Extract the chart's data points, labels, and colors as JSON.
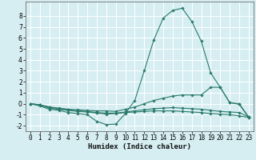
{
  "xlabel": "Humidex (Indice chaleur)",
  "background_color": "#d6eef2",
  "grid_color": "#c8e4e8",
  "line_color": "#2a7a6a",
  "xlim": [
    -0.5,
    23.5
  ],
  "ylim": [
    -2.5,
    9.3
  ],
  "yticks": [
    -2,
    -1,
    0,
    1,
    2,
    3,
    4,
    5,
    6,
    7,
    8
  ],
  "xticks": [
    0,
    1,
    2,
    3,
    4,
    5,
    6,
    7,
    8,
    9,
    10,
    11,
    12,
    13,
    14,
    15,
    16,
    17,
    18,
    19,
    20,
    21,
    22,
    23
  ],
  "lines": [
    {
      "x": [
        0,
        1,
        2,
        3,
        4,
        5,
        6,
        7,
        8,
        9,
        10,
        11,
        12,
        13,
        14,
        15,
        16,
        17,
        18,
        19,
        20,
        21,
        22,
        23
      ],
      "y": [
        0.0,
        -0.2,
        -0.5,
        -0.6,
        -0.8,
        -0.9,
        -1.0,
        -1.6,
        -1.9,
        -1.85,
        -0.9,
        0.3,
        3.0,
        5.8,
        7.8,
        8.5,
        8.7,
        7.5,
        5.7,
        2.8,
        1.5,
        0.1,
        -0.05,
        -1.25
      ]
    },
    {
      "x": [
        0,
        1,
        2,
        3,
        4,
        5,
        6,
        7,
        8,
        9,
        10,
        11,
        12,
        13,
        14,
        15,
        16,
        17,
        18,
        19,
        20,
        21,
        22,
        23
      ],
      "y": [
        0.0,
        -0.1,
        -0.3,
        -0.4,
        -0.5,
        -0.55,
        -0.6,
        -0.65,
        -0.65,
        -0.7,
        -0.5,
        -0.3,
        0.0,
        0.3,
        0.5,
        0.7,
        0.8,
        0.8,
        0.8,
        1.5,
        1.5,
        0.1,
        0.0,
        -1.2
      ]
    },
    {
      "x": [
        0,
        1,
        2,
        3,
        4,
        5,
        6,
        7,
        8,
        9,
        10,
        11,
        12,
        13,
        14,
        15,
        16,
        17,
        18,
        19,
        20,
        21,
        22,
        23
      ],
      "y": [
        0.0,
        -0.1,
        -0.3,
        -0.45,
        -0.55,
        -0.65,
        -0.7,
        -0.8,
        -0.85,
        -0.85,
        -0.75,
        -0.65,
        -0.55,
        -0.45,
        -0.4,
        -0.35,
        -0.4,
        -0.45,
        -0.5,
        -0.6,
        -0.7,
        -0.75,
        -0.8,
        -1.2
      ]
    },
    {
      "x": [
        0,
        1,
        2,
        3,
        4,
        5,
        6,
        7,
        8,
        9,
        10,
        11,
        12,
        13,
        14,
        15,
        16,
        17,
        18,
        19,
        20,
        21,
        22,
        23
      ],
      "y": [
        0.0,
        -0.1,
        -0.4,
        -0.5,
        -0.6,
        -0.7,
        -0.75,
        -0.85,
        -0.95,
        -0.9,
        -0.8,
        -0.75,
        -0.7,
        -0.65,
        -0.65,
        -0.65,
        -0.7,
        -0.75,
        -0.8,
        -0.9,
        -0.95,
        -1.0,
        -1.1,
        -1.25
      ]
    }
  ]
}
